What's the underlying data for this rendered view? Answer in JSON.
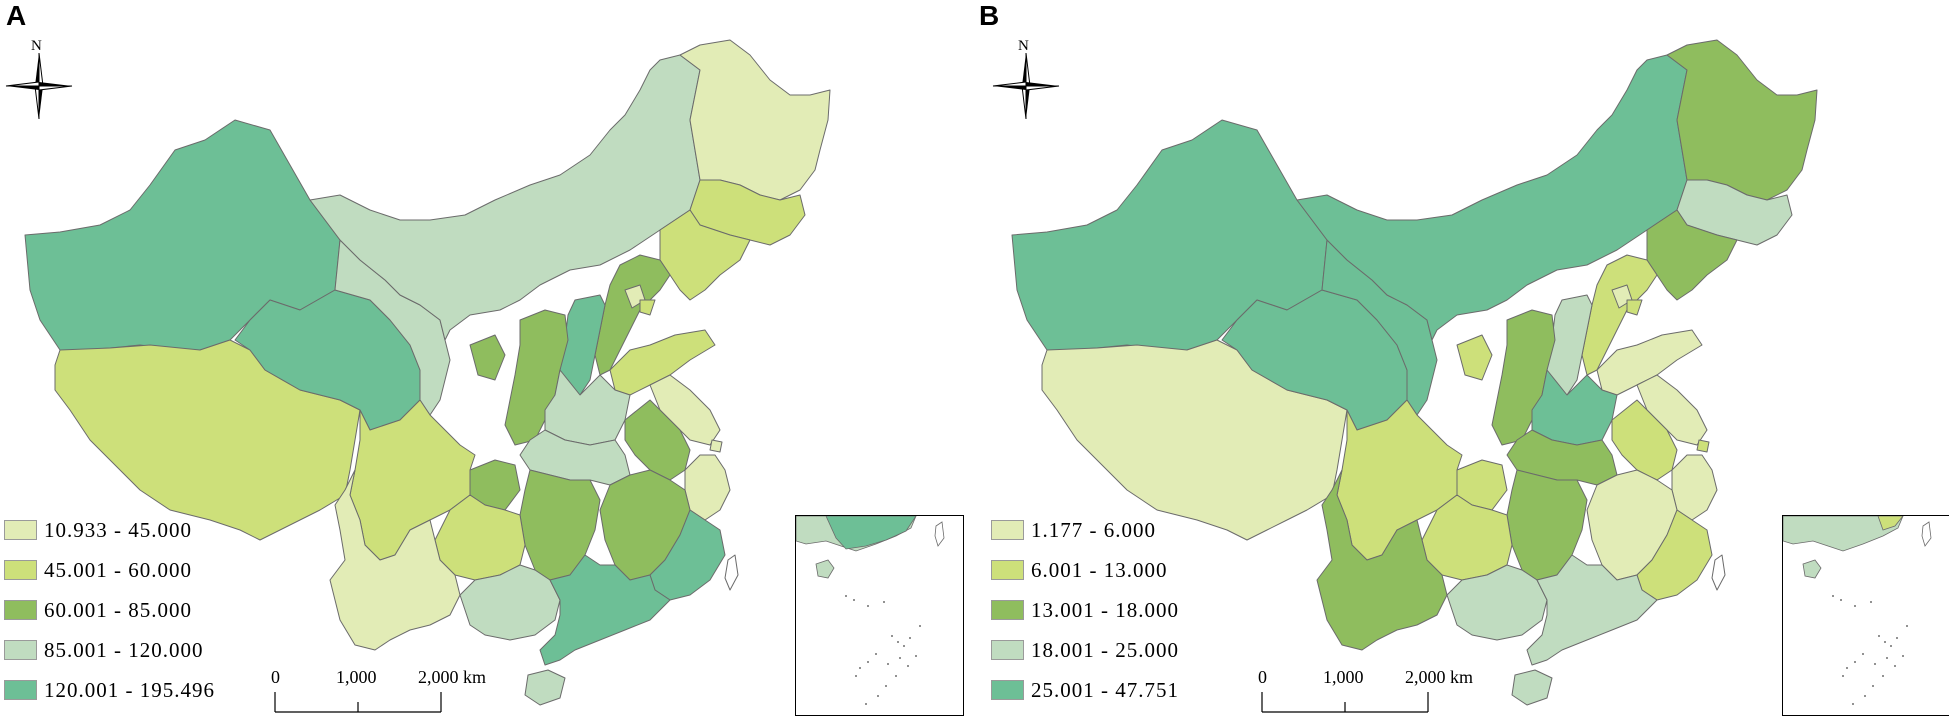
{
  "panels": [
    {
      "letter": "A",
      "north": "N",
      "legend": [
        {
          "label": "10.933 - 45.000",
          "color": "#e2ecb6"
        },
        {
          "label": "45.001 - 60.000",
          "color": "#cde07a"
        },
        {
          "label": "60.001 - 85.000",
          "color": "#8fbd5e"
        },
        {
          "label": "85.001 - 120.000",
          "color": "#c0dcc0"
        },
        {
          "label": "120.001 - 195.496",
          "color": "#6dbf96"
        }
      ],
      "scale": {
        "zero": "0",
        "mid": "1,000",
        "end": "2,000 km"
      }
    },
    {
      "letter": "B",
      "north": "N",
      "legend": [
        {
          "label": "1.177 - 6.000",
          "color": "#e2ecb6"
        },
        {
          "label": "6.001 - 13.000",
          "color": "#cde07a"
        },
        {
          "label": "13.001 - 18.000",
          "color": "#8fbd5e"
        },
        {
          "label": "18.001 - 25.000",
          "color": "#c0dcc0"
        },
        {
          "label": "25.001 - 47.751",
          "color": "#6dbf96"
        }
      ],
      "scale": {
        "zero": "0",
        "mid": "1,000",
        "end": "2,000 km"
      }
    }
  ]
}
